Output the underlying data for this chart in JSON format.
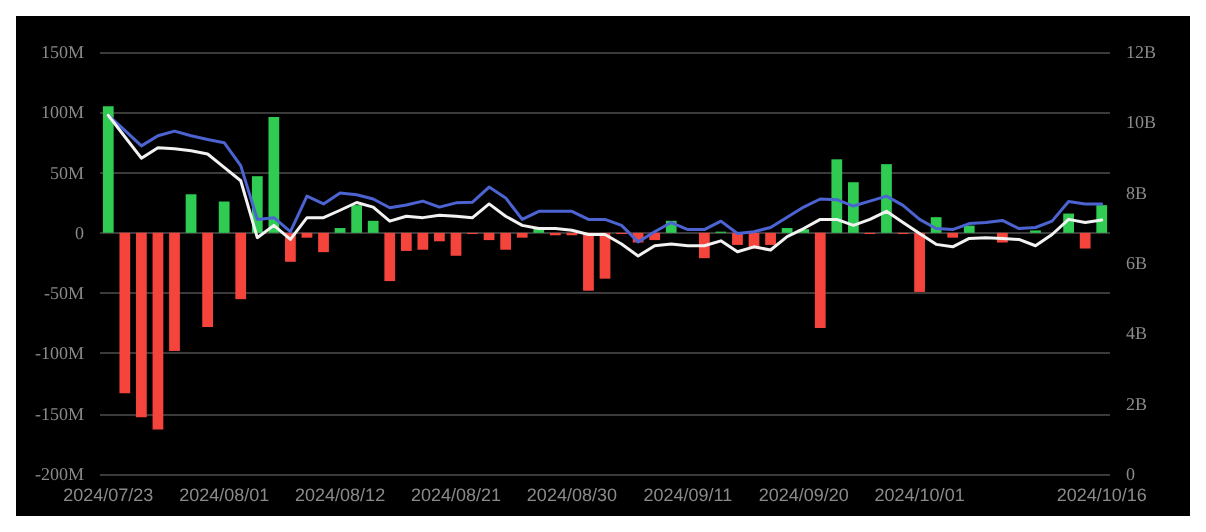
{
  "chart_data": {
    "type": "bar",
    "categories": [
      "2024/07/23",
      null,
      null,
      null,
      null,
      null,
      null,
      "2024/08/01",
      null,
      null,
      null,
      null,
      null,
      null,
      "2024/08/12",
      null,
      null,
      null,
      null,
      null,
      null,
      "2024/08/21",
      null,
      null,
      null,
      null,
      null,
      null,
      "2024/08/30",
      null,
      null,
      null,
      null,
      null,
      null,
      "2024/09/11",
      null,
      null,
      null,
      null,
      null,
      null,
      "2024/09/20",
      null,
      null,
      null,
      null,
      null,
      null,
      "2024/10/01",
      null,
      null,
      null,
      null,
      null,
      null,
      null,
      null,
      null,
      null,
      "2024/10/16"
    ],
    "series": [
      {
        "values": [
          105,
          -133,
          -153,
          -163,
          -98,
          32,
          -78,
          26,
          -55,
          47,
          96,
          -24,
          -4,
          -16,
          4,
          23,
          10,
          -40,
          -15,
          -14,
          -7,
          -19,
          -1,
          -6,
          -14,
          -4,
          4,
          -2,
          -2,
          -48,
          -38,
          -1,
          -8,
          -6,
          10,
          0,
          -21,
          1,
          -10,
          -13,
          -10,
          4,
          3,
          -79,
          61,
          42,
          -1,
          57,
          -1,
          -49,
          13,
          -4,
          6,
          0,
          -8,
          0,
          2,
          0,
          16,
          -13,
          23
        ],
        "colors": [
          "#2fcb52",
          "#f5443c",
          "#f5443c",
          "#f5443c",
          "#f5443c",
          "#2fcb52",
          "#f5443c",
          "#2fcb52",
          "#f5443c",
          "#2fcb52",
          "#2fcb52",
          "#f5443c",
          "#f5443c",
          "#f5443c",
          "#2fcb52",
          "#2fcb52",
          "#2fcb52",
          "#f5443c",
          "#f5443c",
          "#f5443c",
          "#f5443c",
          "#f5443c",
          "#f5443c",
          "#f5443c",
          "#f5443c",
          "#f5443c",
          "#2fcb52",
          "#f5443c",
          "#f5443c",
          "#f5443c",
          "#f5443c",
          "#f5443c",
          "#f5443c",
          "#f5443c",
          "#2fcb52",
          "#2fcb52",
          "#f5443c",
          "#2fcb52",
          "#f5443c",
          "#f5443c",
          "#f5443c",
          "#2fcb52",
          "#2fcb52",
          "#f5443c",
          "#2fcb52",
          "#2fcb52",
          "#f5443c",
          "#2fcb52",
          "#f5443c",
          "#f5443c",
          "#2fcb52",
          "#f5443c",
          "#2fcb52",
          "#2fcb52",
          "#f5443c",
          "#2fcb52",
          "#2fcb52",
          "#2fcb52",
          "#2fcb52",
          "#f5443c",
          "#2fcb52"
        ]
      },
      {
        "type": "line",
        "axis": "y2",
        "color": "#4c63d2",
        "values": [
          10.2,
          9.77,
          9.33,
          9.62,
          9.75,
          9.62,
          9.51,
          9.42,
          8.77,
          7.24,
          7.29,
          6.89,
          7.9,
          7.68,
          7.99,
          7.94,
          7.82,
          7.57,
          7.65,
          7.76,
          7.59,
          7.71,
          7.73,
          8.16,
          7.85,
          7.24,
          7.47,
          7.47,
          7.47,
          7.24,
          7.24,
          7.07,
          6.6,
          6.89,
          7.15,
          6.95,
          6.95,
          7.19,
          6.84,
          6.89,
          7.01,
          7.3,
          7.59,
          7.82,
          7.8,
          7.62,
          7.76,
          7.9,
          7.64,
          7.24,
          6.98,
          6.95,
          7.12,
          7.15,
          7.21,
          6.98,
          7.01,
          7.19,
          7.75,
          7.68,
          7.68
        ]
      },
      {
        "type": "line",
        "axis": "y2",
        "color": "#f2f2f2",
        "values": [
          10.2,
          9.59,
          8.98,
          9.28,
          9.25,
          9.19,
          9.1,
          8.72,
          8.34,
          6.72,
          7.07,
          6.67,
          7.29,
          7.29,
          7.5,
          7.72,
          7.59,
          7.19,
          7.33,
          7.29,
          7.36,
          7.33,
          7.29,
          7.68,
          7.33,
          7.07,
          6.98,
          6.98,
          6.93,
          6.81,
          6.81,
          6.54,
          6.2,
          6.49,
          6.54,
          6.49,
          6.49,
          6.63,
          6.32,
          6.46,
          6.37,
          6.75,
          6.98,
          7.24,
          7.24,
          7.07,
          7.24,
          7.47,
          7.15,
          6.84,
          6.53,
          6.46,
          6.7,
          6.72,
          6.7,
          6.67,
          6.49,
          6.81,
          7.24,
          7.15,
          7.22
        ]
      }
    ],
    "ylim": [
      -200,
      150
    ],
    "yticks": [
      {
        "value": -200,
        "label": "-200M"
      },
      {
        "value": -150,
        "label": "-150M"
      },
      {
        "value": -100,
        "label": "-100M"
      },
      {
        "value": -50,
        "label": "-50M"
      },
      0,
      {
        "value": 50,
        "label": "50M"
      },
      {
        "value": 100,
        "label": "100M"
      },
      {
        "value": 150,
        "label": "150M"
      }
    ],
    "y2lim": [
      0,
      12
    ],
    "y2ticks": [
      0,
      {
        "value": 2,
        "label": "2B"
      },
      {
        "value": 4,
        "label": "4B"
      },
      {
        "value": 6,
        "label": "6B"
      },
      {
        "value": 8,
        "label": "8B"
      },
      {
        "value": 10,
        "label": "10B"
      },
      {
        "value": 12,
        "label": "12B"
      }
    ],
    "grid": "y",
    "marker": "none",
    "line_style": "solid"
  }
}
